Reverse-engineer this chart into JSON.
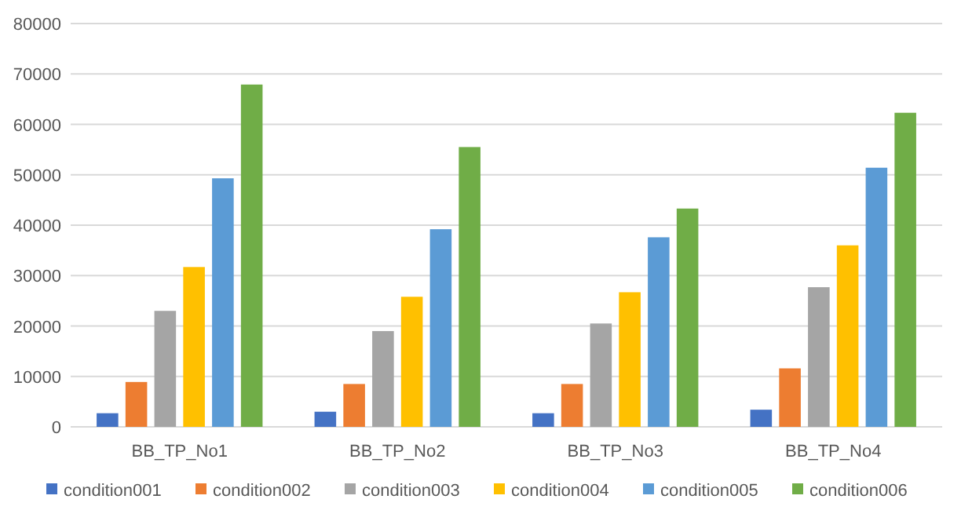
{
  "chart_data": {
    "type": "bar",
    "categories": [
      "BB_TP_No1",
      "BB_TP_No2",
      "BB_TP_No3",
      "BB_TP_No4"
    ],
    "series": [
      {
        "name": "condition001",
        "color": "#4472c4",
        "values": [
          2700,
          3000,
          2700,
          3400
        ]
      },
      {
        "name": "condition002",
        "color": "#ed7d31",
        "values": [
          8900,
          8500,
          8500,
          11600
        ]
      },
      {
        "name": "condition003",
        "color": "#a5a5a5",
        "values": [
          23000,
          19000,
          20500,
          27700
        ]
      },
      {
        "name": "condition004",
        "color": "#ffc000",
        "values": [
          31700,
          25800,
          26700,
          36000
        ]
      },
      {
        "name": "condition005",
        "color": "#5b9bd5",
        "values": [
          49300,
          39200,
          37600,
          51400
        ]
      },
      {
        "name": "condition006",
        "color": "#70ad47",
        "values": [
          67900,
          55500,
          43300,
          62300
        ]
      }
    ],
    "ylim": [
      0,
      80000
    ],
    "yticks": [
      0,
      10000,
      20000,
      30000,
      40000,
      50000,
      60000,
      70000,
      80000
    ],
    "grid": "y",
    "legend": "bottom"
  }
}
